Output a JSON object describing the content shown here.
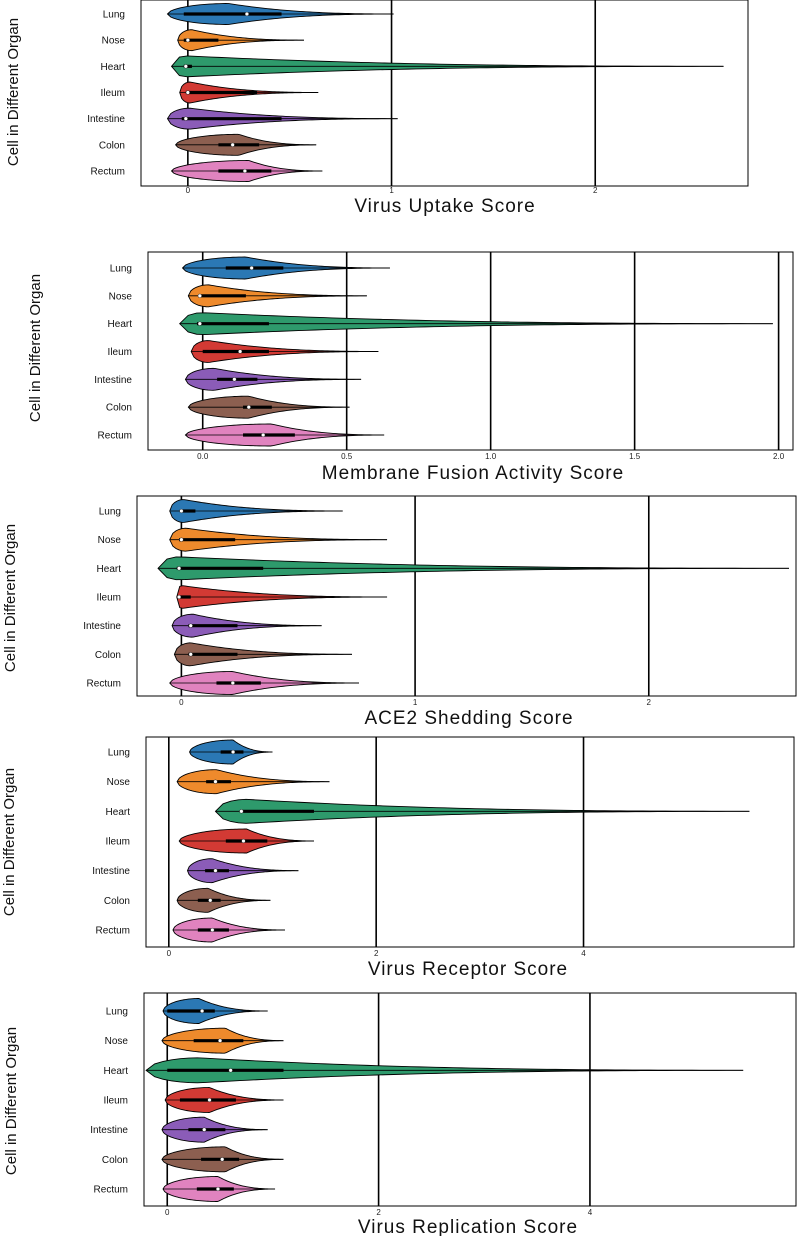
{
  "palette": {
    "Lung": "#2b78b4",
    "Nose": "#ee8a2c",
    "Heart": "#2e9a6c",
    "Ileum": "#d23a34",
    "Intestine": "#8b5cb8",
    "Colon": "#8c5f50",
    "Rectum": "#e083bf"
  },
  "chart_data": [
    {
      "type": "violin",
      "ylabel": "Cell in Different Organ",
      "xlabel": "Virus Uptake Score",
      "categories": [
        "Lung",
        "Nose",
        "Heart",
        "Ileum",
        "Intestine",
        "Colon",
        "Rectum"
      ],
      "xlim": [
        -0.23,
        2.75
      ],
      "ticks": [
        0,
        1,
        2
      ],
      "tick_labels": [
        "0",
        "1",
        "2"
      ],
      "grid": true,
      "violins": [
        {
          "organ": "Lung",
          "min": -0.1,
          "q1": -0.02,
          "median": 0.29,
          "q3": 0.46,
          "max": 1.01,
          "peak": 0.2
        },
        {
          "organ": "Nose",
          "min": -0.05,
          "q1": -0.02,
          "median": 0.0,
          "q3": 0.15,
          "max": 0.57,
          "peak": 0.02
        },
        {
          "organ": "Heart",
          "min": -0.08,
          "q1": -0.02,
          "median": -0.01,
          "q3": 0.02,
          "max": 2.63,
          "peak": -0.01
        },
        {
          "organ": "Ileum",
          "min": -0.04,
          "q1": -0.01,
          "median": 0.0,
          "q3": 0.34,
          "max": 0.64,
          "peak": 0.01
        },
        {
          "organ": "Intestine",
          "min": -0.1,
          "q1": -0.03,
          "median": -0.01,
          "q3": 0.46,
          "max": 1.03,
          "peak": 0.01
        },
        {
          "organ": "Colon",
          "min": -0.06,
          "q1": 0.15,
          "median": 0.22,
          "q3": 0.35,
          "max": 0.63,
          "peak": 0.25
        },
        {
          "organ": "Rectum",
          "min": -0.08,
          "q1": 0.15,
          "median": 0.28,
          "q3": 0.41,
          "max": 0.66,
          "peak": 0.3
        }
      ]
    },
    {
      "type": "violin",
      "ylabel": "Cell in Different Organ",
      "xlabel": "Membrane Fusion Activity Score",
      "categories": [
        "Lung",
        "Nose",
        "Heart",
        "Ileum",
        "Intestine",
        "Colon",
        "Rectum"
      ],
      "xlim": [
        -0.19,
        2.05
      ],
      "ticks": [
        0.0,
        0.5,
        1.0,
        1.5,
        2.0
      ],
      "tick_labels": [
        "0.0",
        "0.5",
        "1.0",
        "1.5",
        "2.0"
      ],
      "grid": true,
      "violins": [
        {
          "organ": "Lung",
          "min": -0.07,
          "q1": 0.08,
          "median": 0.17,
          "q3": 0.28,
          "max": 0.65,
          "peak": 0.15
        },
        {
          "organ": "Nose",
          "min": -0.05,
          "q1": -0.01,
          "median": -0.01,
          "q3": 0.15,
          "max": 0.57,
          "peak": 0.02
        },
        {
          "organ": "Heart",
          "min": -0.08,
          "q1": -0.02,
          "median": -0.01,
          "q3": 0.23,
          "max": 1.98,
          "peak": 0.0
        },
        {
          "organ": "Ileum",
          "min": -0.04,
          "q1": 0.0,
          "median": 0.13,
          "q3": 0.23,
          "max": 0.61,
          "peak": 0.02
        },
        {
          "organ": "Intestine",
          "min": -0.06,
          "q1": 0.05,
          "median": 0.11,
          "q3": 0.19,
          "max": 0.55,
          "peak": 0.04
        },
        {
          "organ": "Colon",
          "min": -0.05,
          "q1": 0.14,
          "median": 0.16,
          "q3": 0.24,
          "max": 0.51,
          "peak": 0.16
        },
        {
          "organ": "Rectum",
          "min": -0.06,
          "q1": 0.14,
          "median": 0.21,
          "q3": 0.32,
          "max": 0.63,
          "peak": 0.24
        }
      ]
    },
    {
      "type": "violin",
      "ylabel": "Cell in Different Organ",
      "xlabel": "ACE2 Shedding Score",
      "categories": [
        "Lung",
        "Nose",
        "Heart",
        "Ileum",
        "Intestine",
        "Colon",
        "Rectum"
      ],
      "xlim": [
        -0.19,
        2.63
      ],
      "ticks": [
        0,
        1,
        2
      ],
      "tick_labels": [
        "0",
        "1",
        "2"
      ],
      "grid": true,
      "violins": [
        {
          "organ": "Lung",
          "min": -0.05,
          "q1": 0.0,
          "median": 0.0,
          "q3": 0.06,
          "max": 0.69,
          "peak": 0.01
        },
        {
          "organ": "Nose",
          "min": -0.05,
          "q1": -0.01,
          "median": 0.0,
          "q3": 0.23,
          "max": 0.88,
          "peak": 0.02
        },
        {
          "organ": "Heart",
          "min": -0.1,
          "q1": -0.02,
          "median": -0.01,
          "q3": 0.35,
          "max": 2.6,
          "peak": -0.01
        },
        {
          "organ": "Ileum",
          "min": -0.02,
          "q1": -0.01,
          "median": -0.01,
          "q3": 0.04,
          "max": 0.88,
          "peak": 0.0
        },
        {
          "organ": "Intestine",
          "min": -0.04,
          "q1": 0.03,
          "median": 0.04,
          "q3": 0.24,
          "max": 0.6,
          "peak": 0.05
        },
        {
          "organ": "Colon",
          "min": -0.03,
          "q1": 0.03,
          "median": 0.04,
          "q3": 0.24,
          "max": 0.73,
          "peak": 0.04
        },
        {
          "organ": "Rectum",
          "min": -0.05,
          "q1": 0.15,
          "median": 0.22,
          "q3": 0.34,
          "max": 0.76,
          "peak": 0.22
        }
      ]
    },
    {
      "type": "violin",
      "ylabel": "Cell in Different Organ",
      "xlabel": "Virus Receptor Score",
      "categories": [
        "Lung",
        "Nose",
        "Heart",
        "Ileum",
        "Intestine",
        "Colon",
        "Rectum"
      ],
      "xlim": [
        -0.22,
        6.03
      ],
      "ticks": [
        0,
        2,
        4
      ],
      "tick_labels": [
        "0",
        "2",
        "4"
      ],
      "grid": true,
      "violins": [
        {
          "organ": "Lung",
          "min": 0.2,
          "q1": 0.5,
          "median": 0.62,
          "q3": 0.72,
          "max": 1.0,
          "peak": 0.62
        },
        {
          "organ": "Nose",
          "min": 0.08,
          "q1": 0.36,
          "median": 0.45,
          "q3": 0.6,
          "max": 1.55,
          "peak": 0.46
        },
        {
          "organ": "Heart",
          "min": 0.45,
          "q1": 0.7,
          "median": 0.7,
          "q3": 1.4,
          "max": 5.6,
          "peak": 0.75
        },
        {
          "organ": "Ileum",
          "min": 0.1,
          "q1": 0.55,
          "median": 0.72,
          "q3": 0.95,
          "max": 1.4,
          "peak": 0.75
        },
        {
          "organ": "Intestine",
          "min": 0.18,
          "q1": 0.35,
          "median": 0.45,
          "q3": 0.58,
          "max": 1.25,
          "peak": 0.42
        },
        {
          "organ": "Colon",
          "min": 0.08,
          "q1": 0.28,
          "median": 0.4,
          "q3": 0.5,
          "max": 0.98,
          "peak": 0.38
        },
        {
          "organ": "Rectum",
          "min": 0.04,
          "q1": 0.28,
          "median": 0.42,
          "q3": 0.58,
          "max": 1.12,
          "peak": 0.42
        }
      ]
    },
    {
      "type": "violin",
      "ylabel": "Cell in Different Organ",
      "xlabel": "Virus Replication Score",
      "categories": [
        "Lung",
        "Nose",
        "Heart",
        "Ileum",
        "Intestine",
        "Colon",
        "Rectum"
      ],
      "xlim": [
        -0.22,
        5.95
      ],
      "ticks": [
        0,
        2,
        4
      ],
      "tick_labels": [
        "0",
        "2",
        "4"
      ],
      "grid": true,
      "violins": [
        {
          "organ": "Lung",
          "min": -0.04,
          "q1": 0.0,
          "median": 0.33,
          "q3": 0.45,
          "max": 0.95,
          "peak": 0.3
        },
        {
          "organ": "Nose",
          "min": -0.05,
          "q1": 0.25,
          "median": 0.5,
          "q3": 0.72,
          "max": 1.1,
          "peak": 0.55
        },
        {
          "organ": "Heart",
          "min": -0.2,
          "q1": 0.0,
          "median": 0.6,
          "q3": 1.1,
          "max": 5.45,
          "peak": 0.3
        },
        {
          "organ": "Ileum",
          "min": -0.02,
          "q1": 0.12,
          "median": 0.4,
          "q3": 0.65,
          "max": 1.1,
          "peak": 0.4
        },
        {
          "organ": "Intestine",
          "min": -0.05,
          "q1": 0.2,
          "median": 0.35,
          "q3": 0.55,
          "max": 0.95,
          "peak": 0.35
        },
        {
          "organ": "Colon",
          "min": -0.05,
          "q1": 0.32,
          "median": 0.52,
          "q3": 0.68,
          "max": 1.1,
          "peak": 0.55
        },
        {
          "organ": "Rectum",
          "min": -0.04,
          "q1": 0.28,
          "median": 0.48,
          "q3": 0.63,
          "max": 1.02,
          "peak": 0.48
        }
      ]
    }
  ]
}
